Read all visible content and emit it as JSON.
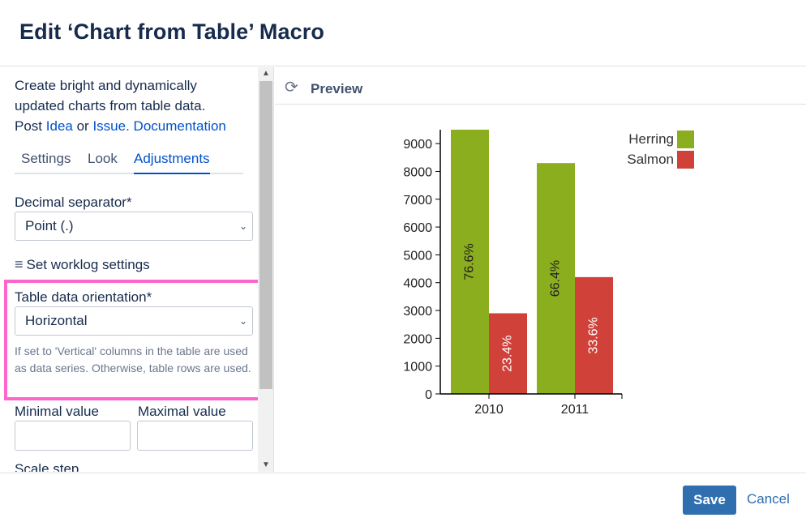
{
  "dialog": {
    "title": "Edit ‘Chart from Table’ Macro"
  },
  "description": {
    "text1": "Create bright and dynamically updated charts from table data.",
    "post_prefix": "Post",
    "idea_link": "Idea",
    "or_word": "or",
    "issue_link": "Issue.",
    "doc_link": "Documentation"
  },
  "tabs": [
    {
      "label": "Settings"
    },
    {
      "label": "Look"
    },
    {
      "label": "Adjustments",
      "active": true
    }
  ],
  "form": {
    "decimal_label": "Decimal separator*",
    "decimal_value": "Point (.)",
    "worklog_label": "Set worklog settings",
    "orientation_label": "Table data orientation*",
    "orientation_value": "Horizontal",
    "orientation_help": "If set to 'Vertical' columns in the table are used as data series. Otherwise, table rows are used.",
    "min_label": "Minimal value",
    "max_label": "Maximal value",
    "min_value": "",
    "max_value": "",
    "scale_step_label": "Scale step"
  },
  "preview": {
    "title": "Preview",
    "icon": "refresh-icon"
  },
  "chart_data": {
    "type": "bar",
    "categories": [
      "2010",
      "2011"
    ],
    "series": [
      {
        "name": "Herring",
        "color": "#8bae1f",
        "values": [
          9500,
          8300
        ],
        "labels": [
          "76.6%",
          "66.4%"
        ]
      },
      {
        "name": "Salmon",
        "color": "#d0413a",
        "values": [
          2900,
          4200
        ],
        "labels": [
          "23.4%",
          "33.6%"
        ]
      }
    ],
    "yticks": [
      0,
      1000,
      2000,
      3000,
      4000,
      5000,
      6000,
      7000,
      8000,
      9000
    ],
    "ylim": [
      0,
      9500
    ],
    "legend": "top-right"
  },
  "footer": {
    "save_label": "Save",
    "cancel_label": "Cancel"
  },
  "colors": {
    "accent": "#0052cc",
    "button": "#2f6fb0",
    "highlight": "#ff66cc"
  }
}
